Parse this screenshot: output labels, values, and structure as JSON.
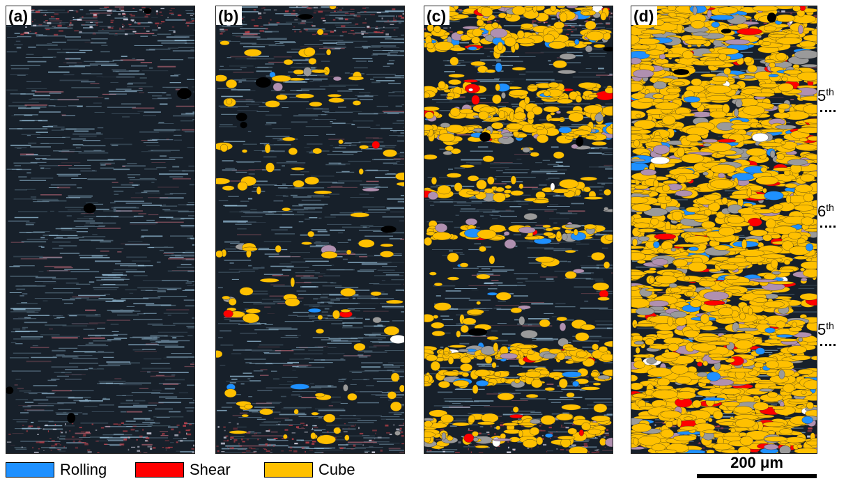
{
  "panels": [
    {
      "id": "a",
      "label": "(a)"
    },
    {
      "id": "b",
      "label": "(b)"
    },
    {
      "id": "c",
      "label": "(c)"
    },
    {
      "id": "d",
      "label": "(d)"
    }
  ],
  "legend": [
    {
      "label": "Rolling",
      "color": "#1e90ff"
    },
    {
      "label": "Shear",
      "color": "#ff0000"
    },
    {
      "label": "Cube",
      "color": "#ffc000"
    }
  ],
  "layer_labels": [
    {
      "base": "5",
      "suffix": "th"
    },
    {
      "base": "6",
      "suffix": "th"
    },
    {
      "base": "5",
      "suffix": "th"
    }
  ],
  "scale_bar": {
    "label": "200 μm"
  },
  "colors": {
    "background": "#17202a",
    "deformed_matrix": "#a8d4f0",
    "rolling": "#1e90ff",
    "shear": "#ff0000",
    "cube": "#ffc000",
    "other": "#9a9a9a"
  },
  "cube_fraction": {
    "a": 0.0,
    "b": 0.05,
    "c": 0.35,
    "d": 0.8
  }
}
